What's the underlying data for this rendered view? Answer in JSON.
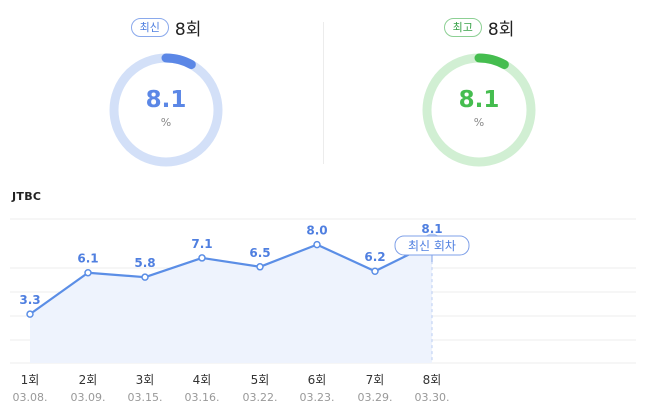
{
  "cards": {
    "latest": {
      "badge": "최신",
      "episode": "8회",
      "value": "8.1",
      "unit": "%",
      "accent": "#5b87e6",
      "track": "#d3e0f8",
      "fill_fraction": 0.081
    },
    "best": {
      "badge": "최고",
      "episode": "8회",
      "value": "8.1",
      "unit": "%",
      "accent": "#45bd4f",
      "track": "#d1efd3",
      "fill_fraction": 0.081
    }
  },
  "channel": "JTBC",
  "chart_data": {
    "type": "line",
    "categories": [
      "1회",
      "2회",
      "3회",
      "4회",
      "5회",
      "6회",
      "7회",
      "8회"
    ],
    "dates": [
      "03.08.",
      "03.09.",
      "03.15.",
      "03.16.",
      "03.22.",
      "03.23.",
      "03.29.",
      "03.30."
    ],
    "values": [
      3.3,
      6.1,
      5.8,
      7.1,
      6.5,
      8.0,
      6.2,
      8.1
    ],
    "value_labels": [
      "3.3",
      "6.1",
      "5.8",
      "7.1",
      "6.5",
      "8.0",
      "6.2",
      "8.1"
    ],
    "ylim": [
      0,
      10
    ],
    "highlight_index": 7,
    "highlight_label": "최신 회차",
    "grid": true,
    "colors": {
      "line": "#5b8ee6",
      "area": "#eef3fd",
      "label": "#4f7fe0",
      "grid": "#ececec"
    }
  }
}
